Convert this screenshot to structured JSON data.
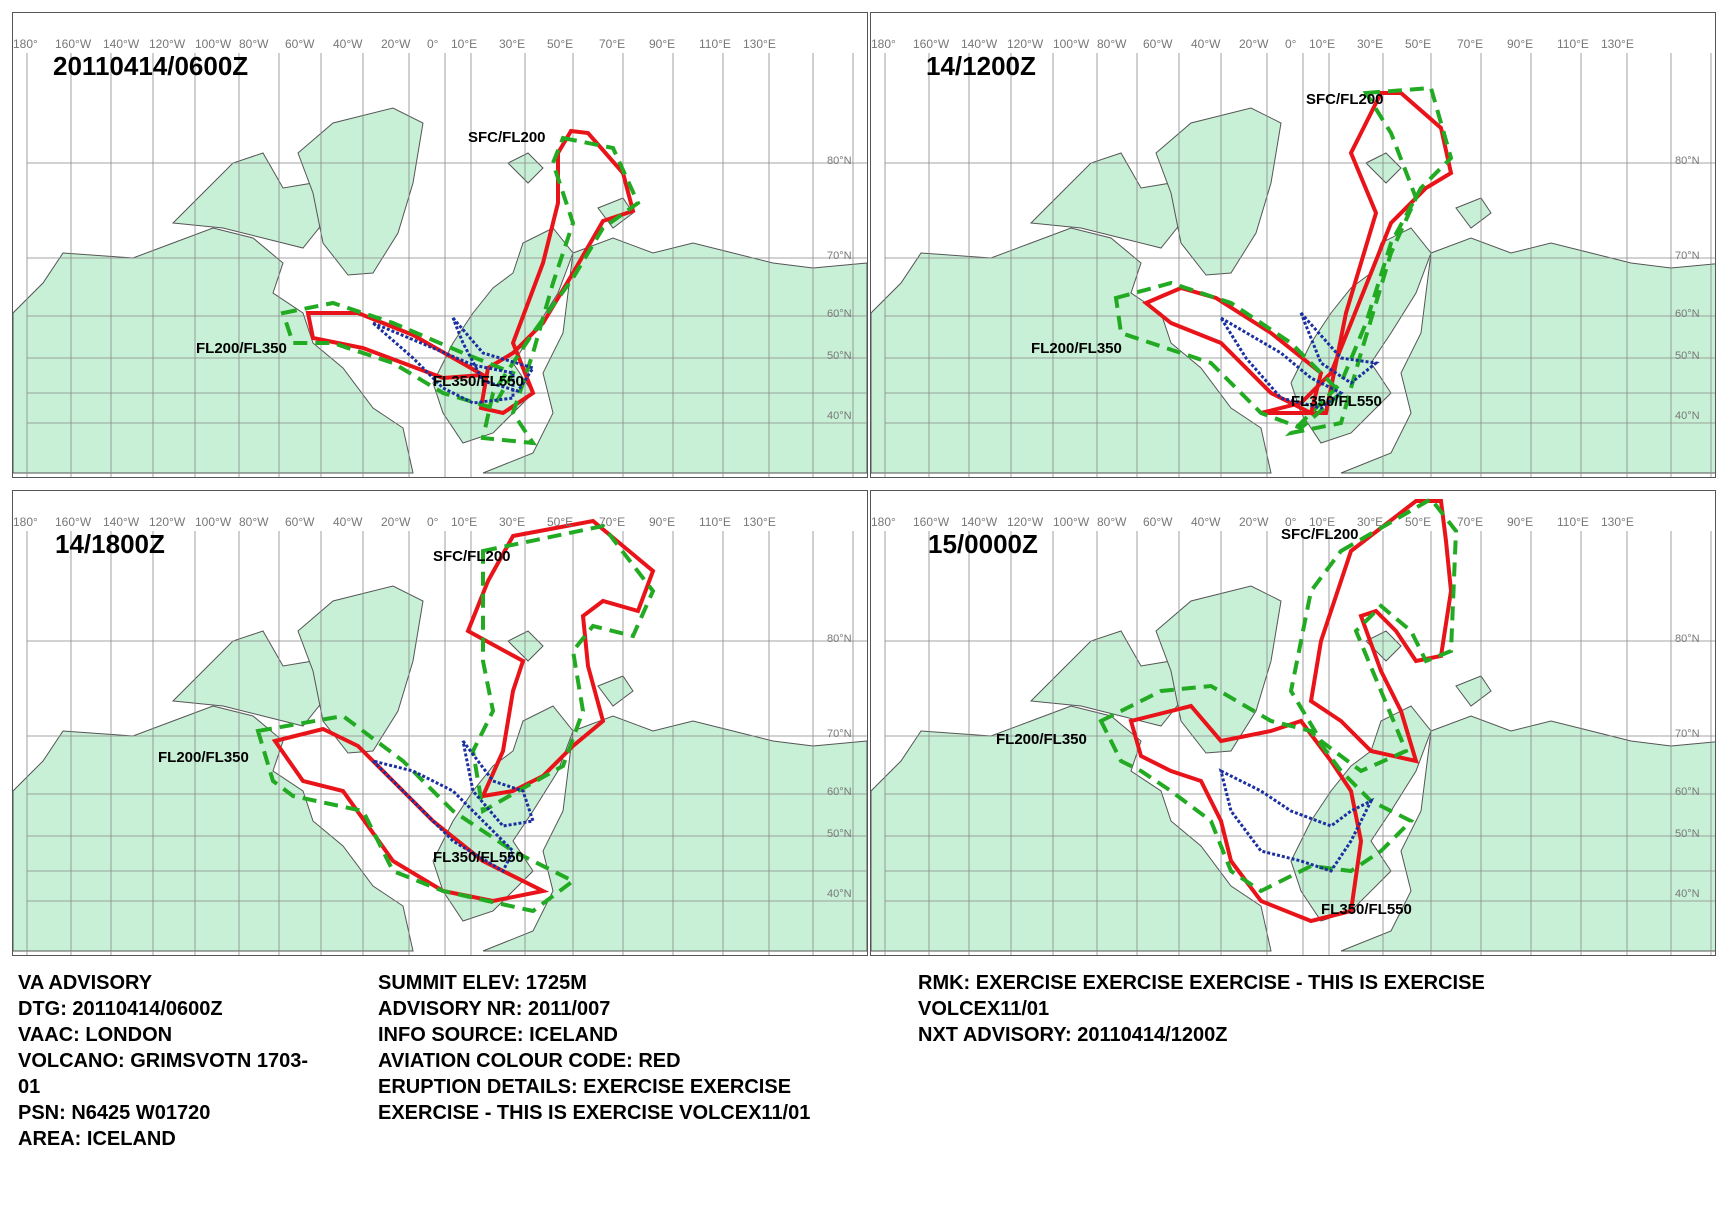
{
  "longitude_labels": [
    "180°",
    "160°W",
    "140°W",
    "120°W",
    "100°W",
    "80°W",
    "60°W",
    "40°W",
    "20°W",
    "0°",
    "10°E",
    "30°E",
    "50°E",
    "70°E",
    "90°E",
    "110°E",
    "130°E"
  ],
  "latitude_labels": [
    "80°N",
    "70°N",
    "60°N",
    "50°N",
    "40°N"
  ],
  "colors": {
    "land": "#c8f0d6",
    "coastline": "#555555",
    "sfc_fl200": "#e8141a",
    "fl200_fl350": "#22aa22",
    "fl350_fl550": "#1a2fa0"
  },
  "panels": [
    {
      "time": "20110414/0600Z",
      "labels": {
        "sfc": "SFC/FL200",
        "mid": "FL200/FL350",
        "high": "FL350/FL550"
      }
    },
    {
      "time": "14/1200Z",
      "labels": {
        "sfc": "SFC/FL200",
        "mid": "FL200/FL350",
        "high": "FL350/FL550"
      }
    },
    {
      "time": "14/1800Z",
      "labels": {
        "sfc": "SFC/FL200",
        "mid": "FL200/FL350",
        "high": "FL350/FL550"
      }
    },
    {
      "time": "15/0000Z",
      "labels": {
        "sfc": "SFC/FL200",
        "mid": "FL200/FL350",
        "high": "FL350/FL550"
      }
    }
  ],
  "advisory": {
    "col1": [
      "VA ADVISORY",
      "DTG:  20110414/0600Z",
      "VAAC:  LONDON",
      "VOLCANO:  GRIMSVOTN 1703-",
      "01",
      "PSN:  N6425 W01720",
      "AREA:  ICELAND"
    ],
    "col2": [
      "SUMMIT ELEV:  1725M",
      "ADVISORY NR:  2011/007",
      "INFO SOURCE:  ICELAND",
      "AVIATION COLOUR CODE:  RED",
      "ERUPTION DETAILS:  EXERCISE EXERCISE",
      "EXERCISE - THIS IS EXERCISE VOLCEX11/01"
    ],
    "col3": [
      "RMK:  EXERCISE EXERCISE EXERCISE - THIS IS EXERCISE",
      "VOLCEX11/01",
      "NXT ADVISORY:  20110414/1200Z"
    ]
  }
}
